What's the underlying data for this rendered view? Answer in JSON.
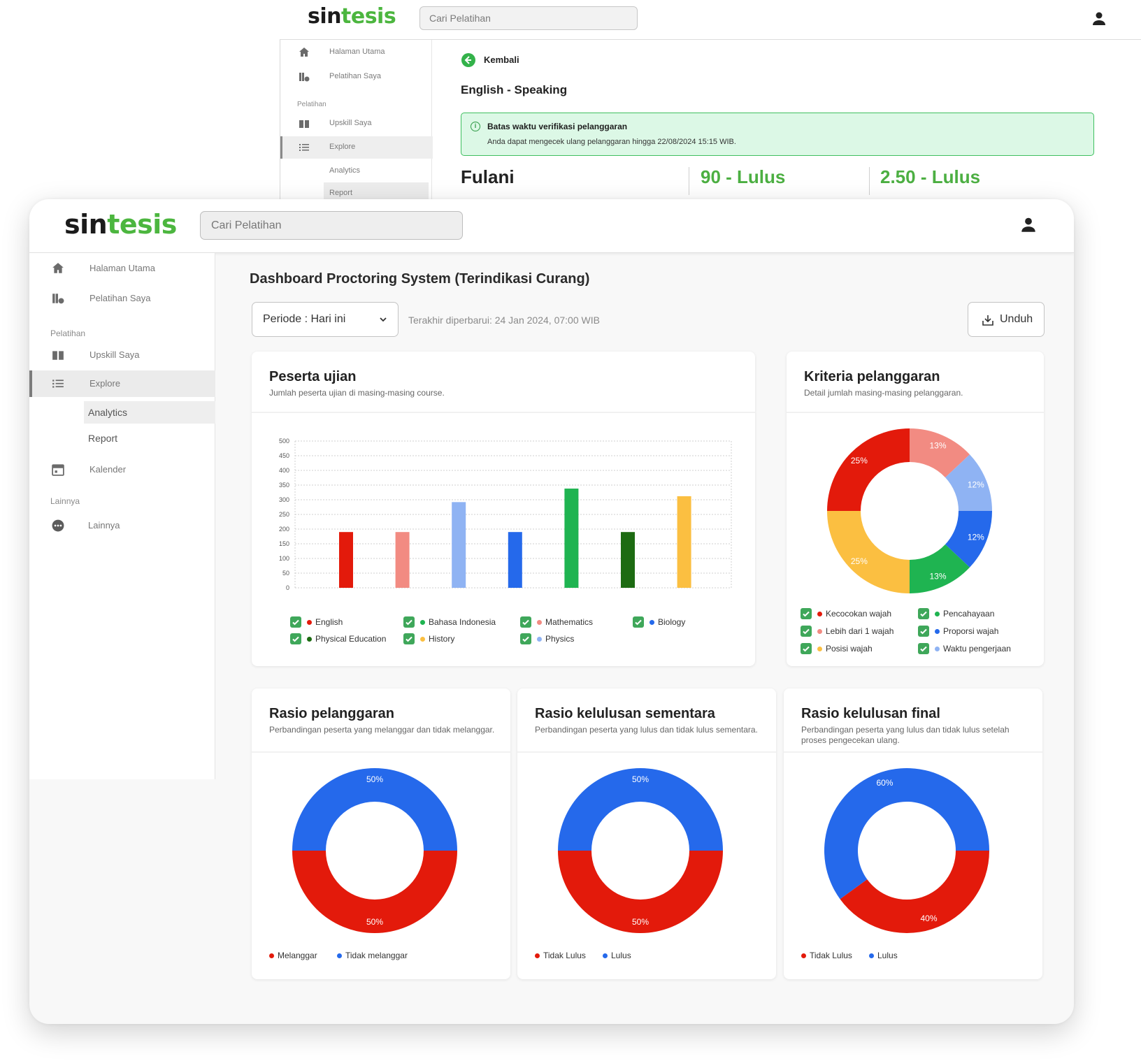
{
  "background_window": {
    "logo": {
      "part1": "sin",
      "part2": "tesis"
    },
    "search_placeholder": "Cari Pelatihan",
    "sidebar": {
      "items": [
        {
          "label": "Halaman Utama",
          "icon": "home-icon"
        },
        {
          "label": "Pelatihan Saya",
          "icon": "books-icon"
        }
      ],
      "section_pelatihan": "Pelatihan",
      "pelatihan_items": [
        {
          "label": "Upskill Saya",
          "icon": "book-open-icon"
        },
        {
          "label": "Explore",
          "icon": "list-icon"
        }
      ],
      "sub_items": [
        {
          "label": "Analytics"
        },
        {
          "label": "Report"
        }
      ]
    },
    "back_label": "Kembali",
    "course_title": "English - Speaking",
    "alert": {
      "title": "Batas waktu verifikasi pelanggaran",
      "body": "Anda dapat mengecek ulang pelanggaran hingga 22/08/2024 15:15 WIB."
    },
    "student_name": "Fulani",
    "score_1": "90 - Lulus",
    "score_2": "2.50 - Lulus"
  },
  "main_window": {
    "logo": {
      "part1": "sin",
      "part2": "tesis"
    },
    "search_placeholder": "Cari Pelatihan",
    "sidebar": {
      "items": [
        {
          "label": "Halaman Utama",
          "icon": "home-icon"
        },
        {
          "label": "Pelatihan Saya",
          "icon": "books-icon"
        }
      ],
      "section_pelatihan": "Pelatihan",
      "pelatihan_items": [
        {
          "label": "Upskill Saya",
          "icon": "book-open-icon"
        },
        {
          "label": "Explore",
          "icon": "list-icon"
        }
      ],
      "sub_items": [
        {
          "label": "Analytics"
        },
        {
          "label": "Report"
        }
      ],
      "kalender": {
        "label": "Kalender",
        "icon": "calendar-icon"
      },
      "section_lainnya": "Lainnya",
      "lainnya": {
        "label": "Lainnya",
        "icon": "more-icon"
      }
    },
    "page_title": "Dashboard Proctoring System (Terindikasi Curang)",
    "period_label": "Periode : Hari ini",
    "updated_text": "Terakhir diperbarui: 24 Jan 2024, 07:00 WIB",
    "download_label": "Unduh",
    "cards": {
      "peserta": {
        "title": "Peserta ujian",
        "subtitle": "Jumlah peserta ujian di masing-masing course."
      },
      "kriteria": {
        "title": "Kriteria pelanggaran",
        "subtitle": "Detail jumlah masing-masing pelanggaran."
      },
      "rasio_pelanggaran": {
        "title": "Rasio pelanggaran",
        "subtitle": "Perbandingan peserta yang melanggar dan tidak melanggar."
      },
      "rasio_sementara": {
        "title": "Rasio kelulusan sementara",
        "subtitle": "Perbandingan peserta yang lulus dan tidak lulus sementara."
      },
      "rasio_final": {
        "title": "Rasio kelulusan final",
        "subtitle": "Perbandingan peserta yang lulus dan tidak lulus setelah proses pengecekan ulang."
      }
    }
  },
  "colors": {
    "brand_green": "#4cb63f",
    "red": "#e31a0b",
    "blue": "#2569eb"
  },
  "chart_data": [
    {
      "type": "bar",
      "title": "Peserta ujian",
      "ylim": [
        0,
        500
      ],
      "yticks": [
        "0",
        "50",
        "100",
        "150",
        "200",
        "250",
        "300",
        "350",
        "400",
        "450",
        "500"
      ],
      "grid": true,
      "legend_placement": "bottom",
      "series": [
        {
          "name": "English",
          "value": 190,
          "color": "#e31a0b"
        },
        {
          "name": "Bahasa Indonesia",
          "value": 190,
          "color": "#f28b82"
        },
        {
          "name": "Mathematics",
          "value": 292,
          "color": "#8fb3f3"
        },
        {
          "name": "Biology",
          "value": 190,
          "color": "#2569eb"
        },
        {
          "name": "Physical Education",
          "value": 338,
          "color": "#1fb451"
        },
        {
          "name": "History",
          "value": 190,
          "color": "#1d6b12"
        },
        {
          "name": "Physics",
          "value": 312,
          "color": "#fbbf41"
        }
      ],
      "legend_order": [
        {
          "name": "English",
          "color": "#e31a0b"
        },
        {
          "name": "Bahasa Indonesia",
          "color": "#1fb451"
        },
        {
          "name": "Mathematics",
          "color": "#f28b82"
        },
        {
          "name": "Biology",
          "color": "#2569eb"
        },
        {
          "name": "Physical Education",
          "color": "#1d6b12"
        },
        {
          "name": "History",
          "color": "#fbbf41"
        },
        {
          "name": "Physics",
          "color": "#8fb3f3"
        }
      ]
    },
    {
      "type": "pie",
      "title": "Kriteria pelanggaran",
      "slices": [
        {
          "label": "13%",
          "value": 13,
          "color": "#f28b82"
        },
        {
          "label": "12%",
          "value": 12,
          "color": "#8fb3f3"
        },
        {
          "label": "12%",
          "value": 12,
          "color": "#2569eb"
        },
        {
          "label": "13%",
          "value": 13,
          "color": "#1fb451"
        },
        {
          "label": "25%",
          "value": 25,
          "color": "#fbbf41"
        },
        {
          "label": "25%",
          "value": 25,
          "color": "#e31a0b"
        }
      ],
      "legend": [
        {
          "name": "Kecocokan wajah",
          "color": "#e31a0b"
        },
        {
          "name": "Pencahayaan",
          "color": "#1fb451"
        },
        {
          "name": "Lebih dari 1 wajah",
          "color": "#f28b82"
        },
        {
          "name": "Proporsi wajah",
          "color": "#2569eb"
        },
        {
          "name": "Posisi wajah",
          "color": "#fbbf41"
        },
        {
          "name": "Waktu pengerjaan",
          "color": "#8fb3f3"
        }
      ]
    },
    {
      "type": "pie",
      "title": "Rasio pelanggaran",
      "slices": [
        {
          "name": "Tidak melanggar",
          "label": "50%",
          "value": 50,
          "color": "#2569eb"
        },
        {
          "name": "Melanggar",
          "label": "50%",
          "value": 50,
          "color": "#e31a0b"
        }
      ],
      "legend": [
        {
          "name": "Melanggar",
          "color": "#e31a0b"
        },
        {
          "name": "Tidak melanggar",
          "color": "#2569eb"
        }
      ]
    },
    {
      "type": "pie",
      "title": "Rasio kelulusan sementara",
      "slices": [
        {
          "name": "Lulus",
          "label": "50%",
          "value": 50,
          "color": "#2569eb"
        },
        {
          "name": "Tidak Lulus",
          "label": "50%",
          "value": 50,
          "color": "#e31a0b"
        }
      ],
      "legend": [
        {
          "name": "Tidak Lulus",
          "color": "#e31a0b"
        },
        {
          "name": "Lulus",
          "color": "#2569eb"
        }
      ]
    },
    {
      "type": "pie",
      "title": "Rasio kelulusan final",
      "slices": [
        {
          "name": "Lulus",
          "label": "60%",
          "value": 60,
          "color": "#2569eb"
        },
        {
          "name": "Tidak Lulus",
          "label": "40%",
          "value": 40,
          "color": "#e31a0b"
        }
      ],
      "legend": [
        {
          "name": "Tidak Lulus",
          "color": "#e31a0b"
        },
        {
          "name": "Lulus",
          "color": "#2569eb"
        }
      ]
    }
  ]
}
